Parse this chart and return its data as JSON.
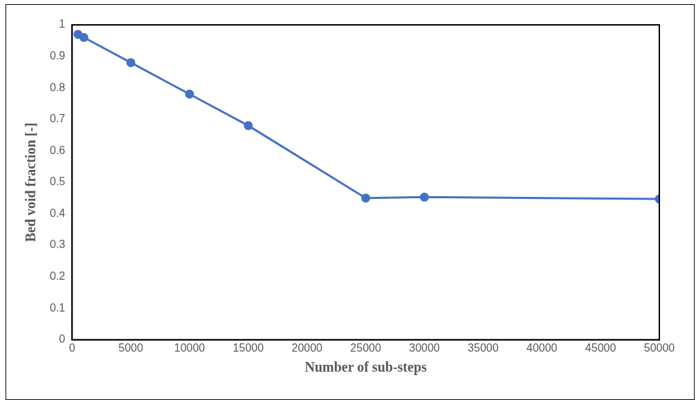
{
  "chart_data": {
    "type": "line",
    "xlabel": "Number of sub-steps",
    "ylabel": "Bed void fraction [-]",
    "x": [
      500,
      1000,
      5000,
      10000,
      15000,
      25000,
      30000,
      50000
    ],
    "series": [
      {
        "color": "#4472c4",
        "values": [
          0.97,
          0.96,
          0.88,
          0.78,
          0.68,
          0.45,
          0.453,
          0.447
        ]
      }
    ],
    "xlim": [
      0,
      50000
    ],
    "xticks": [
      0,
      5000,
      10000,
      15000,
      20000,
      25000,
      30000,
      35000,
      40000,
      45000,
      50000
    ],
    "ylim": [
      0,
      1
    ],
    "yticks": [
      0,
      0.1,
      0.2,
      0.3,
      0.4,
      0.5,
      0.6,
      0.7,
      0.8,
      0.9,
      1
    ],
    "grid": false,
    "legend": false,
    "marker": "circle",
    "line_style": "solid"
  }
}
